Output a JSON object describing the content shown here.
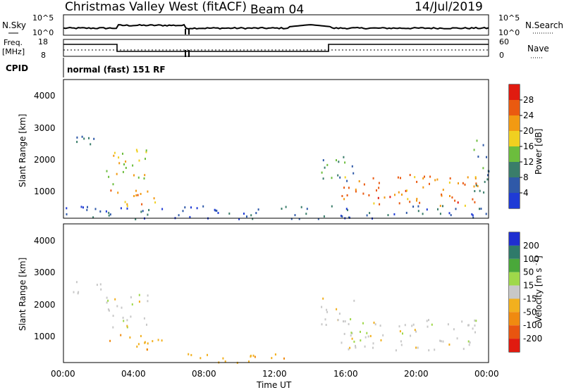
{
  "header": {
    "station": "Christmas Valley West (fitACF)",
    "beam": "Beam 04",
    "date": "14/Jul/2019"
  },
  "top_panels": {
    "nsky_label": "N.Sky",
    "nsky_ticks": [
      "10^5",
      "10^0"
    ],
    "nsearch_label": "N.Search",
    "nsearch_ticks": [
      "10^5",
      "10^0"
    ],
    "freq_label_1": "Freq.",
    "freq_label_2": "[MHz]",
    "freq_ticks": [
      "18",
      "8"
    ],
    "nave_label": "Nave",
    "nave_ticks": [
      "60",
      "0"
    ],
    "cpid_label": "CPID",
    "cpid_text": "normal (fast) 151 RF"
  },
  "chart_data": [
    {
      "type": "heatmap",
      "title": "",
      "ylabel": "Slant Range [km]",
      "xlabel": "",
      "yticks": [
        "1000",
        "2000",
        "3000",
        "4000"
      ],
      "ylim": [
        180,
        4600
      ],
      "xlim": [
        0,
        24
      ],
      "colorbar_label": "Power [dB]",
      "colorbar_ticks": [
        "4",
        "8",
        "12",
        "16",
        "20",
        "24",
        "28"
      ],
      "colorbar_range": [
        0,
        32
      ],
      "colors": [
        "#1f3bd6",
        "#2f59a8",
        "#3a7d6a",
        "#6cbd3d",
        "#f0d020",
        "#f29a12",
        "#ea5a10",
        "#e01b10"
      ],
      "features": [
        {
          "time": [
            0.5,
            2.2
          ],
          "range": [
            2400,
            2900
          ],
          "level": 9
        },
        {
          "time": [
            2.3,
            4.8
          ],
          "range": [
            1250,
            2400
          ],
          "level": 17
        },
        {
          "time": [
            2.5,
            5.8
          ],
          "range": [
            600,
            1100
          ],
          "level": 22
        },
        {
          "time": [
            0.0,
            24.0
          ],
          "range": [
            180,
            600
          ],
          "level": 6
        },
        {
          "time": [
            15.6,
            23.5
          ],
          "range": [
            600,
            1600
          ],
          "level": 24
        },
        {
          "time": [
            14.5,
            16.5
          ],
          "range": [
            1400,
            2300
          ],
          "level": 11
        },
        {
          "time": [
            23.0,
            24.0
          ],
          "range": [
            1000,
            2800
          ],
          "level": 10
        }
      ]
    },
    {
      "type": "heatmap",
      "title": "",
      "ylabel": "Slant Range [km]",
      "xlabel": "Time UT",
      "xticks": [
        "00:00",
        "04:00",
        "08:00",
        "12:00",
        "16:00",
        "20:00",
        "00:00"
      ],
      "yticks": [
        "1000",
        "2000",
        "3000",
        "4000"
      ],
      "ylim": [
        180,
        4600
      ],
      "xlim": [
        0,
        24
      ],
      "colorbar_label": "Velocity [m s^-1]",
      "colorbar_ticks": [
        "200",
        "100",
        "50",
        "15",
        "-15",
        "-50",
        "-100",
        "-200"
      ],
      "colors": [
        "#1f2fd0",
        "#2f7a6a",
        "#4aa83a",
        "#9fd84a",
        "#c8c8c8",
        "#f2b01e",
        "#f08a10",
        "#e85510",
        "#e01b10"
      ],
      "features": [
        {
          "time": [
            0.5,
            2.2
          ],
          "range": [
            2400,
            2900
          ],
          "velocity": 0
        },
        {
          "time": [
            2.3,
            4.8
          ],
          "range": [
            1250,
            2400
          ],
          "velocity": 0
        },
        {
          "time": [
            2.5,
            5.8
          ],
          "range": [
            600,
            1100
          ],
          "velocity": -40
        },
        {
          "time": [
            7.0,
            13.0
          ],
          "range": [
            180,
            500
          ],
          "velocity": -40
        },
        {
          "time": [
            15.6,
            23.5
          ],
          "range": [
            600,
            1600
          ],
          "velocity": 0
        },
        {
          "time": [
            14.5,
            16.5
          ],
          "range": [
            1400,
            2300
          ],
          "velocity": 0
        }
      ]
    }
  ]
}
